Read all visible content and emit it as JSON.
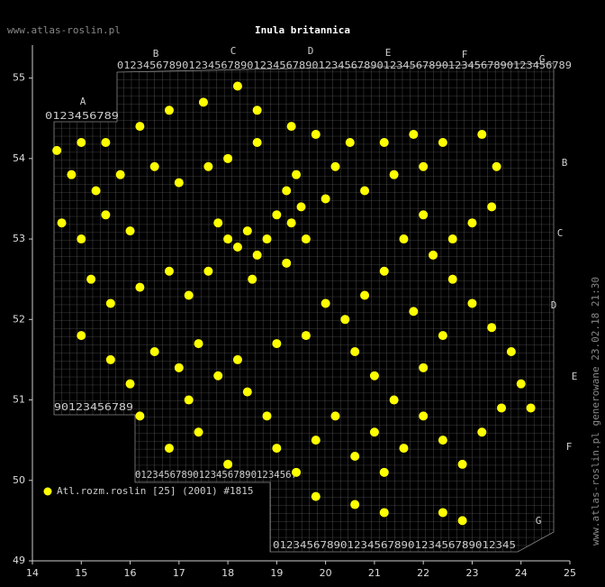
{
  "chart_data": {
    "type": "scatter",
    "title": "Inula britannica",
    "watermark": "www.atlas-roslin.pl",
    "side_text": "www.atlas-roslin.pl generowane 23.02.18 21:30",
    "xlim": [
      14,
      25
    ],
    "ylim": [
      49,
      55.41
    ],
    "xticks": [
      14,
      15,
      16,
      17,
      18,
      19,
      20,
      21,
      22,
      23,
      24,
      25
    ],
    "yticks": [
      49,
      50,
      51,
      52,
      53,
      54,
      55
    ],
    "grid_letters_top": [
      "A",
      "B",
      "C",
      "D",
      "E",
      "F",
      "G"
    ],
    "grid_letters_right": [
      "B",
      "C",
      "D",
      "E",
      "F",
      "G"
    ],
    "grid_digit_rows": [
      "0123456789012345678901234567890123456789012345678901234567890123456789",
      "0123456789",
      "90123456789",
      "0123456789012345678901234567",
      "012345678901234567890123456789012345"
    ],
    "series": [
      {
        "name": "Atl.rozm.roslin [25] (2001) #1815",
        "color": "#ffff00",
        "x": [
          14.5,
          15.0,
          15.5,
          16.2,
          16.8,
          17.5,
          18.2,
          18.6,
          19.3,
          19.8,
          20.5,
          21.2,
          21.8,
          22.4,
          23.2,
          23.5,
          14.8,
          15.3,
          15.8,
          16.5,
          17.0,
          17.6,
          14.6,
          15.0,
          15.5,
          16.0,
          17.8,
          18.0,
          18.2,
          18.4,
          18.6,
          18.8,
          19.0,
          19.2,
          19.4,
          19.3,
          19.5,
          19.6,
          19.2,
          18.5,
          17.6,
          17.2,
          16.8,
          16.2,
          15.6,
          15.2,
          15.0,
          15.6,
          16.0,
          16.5,
          17.0,
          17.2,
          17.4,
          17.8,
          18.2,
          18.4,
          18.8,
          19.0,
          19.4,
          19.8,
          20.2,
          20.6,
          21.0,
          21.2,
          21.6,
          22.0,
          22.4,
          22.8,
          23.2,
          23.6,
          24.0,
          23.8,
          23.4,
          23.0,
          22.6,
          22.2,
          22.6,
          23.0,
          23.4,
          22.0,
          21.6,
          21.2,
          20.8,
          20.4,
          20.0,
          19.6,
          19.0,
          20.6,
          21.0,
          21.4,
          22.0,
          22.4,
          21.8,
          20.8,
          21.4,
          22.0,
          20.2,
          20.0,
          18.0,
          18.6,
          16.2,
          16.8,
          17.4,
          18.0,
          19.8,
          20.6,
          21.2,
          22.4,
          22.8,
          24.2
        ],
        "y": [
          54.1,
          54.2,
          54.2,
          54.4,
          54.6,
          54.7,
          54.9,
          54.6,
          54.4,
          54.3,
          54.2,
          54.2,
          54.3,
          54.2,
          54.3,
          53.9,
          53.8,
          53.6,
          53.8,
          53.9,
          53.7,
          53.9,
          53.2,
          53.0,
          53.3,
          53.1,
          53.2,
          53.0,
          52.9,
          53.1,
          52.8,
          53.0,
          53.3,
          53.6,
          53.8,
          53.2,
          53.4,
          53.0,
          52.7,
          52.5,
          52.6,
          52.3,
          52.6,
          52.4,
          52.2,
          52.5,
          51.8,
          51.5,
          51.2,
          51.6,
          51.4,
          51.0,
          51.7,
          51.3,
          51.5,
          51.1,
          50.8,
          50.4,
          50.1,
          50.5,
          50.8,
          50.3,
          50.6,
          50.1,
          50.4,
          50.8,
          50.5,
          50.2,
          50.6,
          50.9,
          51.2,
          51.6,
          51.9,
          52.2,
          52.5,
          52.8,
          53.0,
          53.2,
          53.4,
          53.3,
          53.0,
          52.6,
          52.3,
          52.0,
          52.2,
          51.8,
          51.7,
          51.6,
          51.3,
          51.0,
          51.4,
          51.8,
          52.1,
          53.6,
          53.8,
          53.9,
          53.9,
          53.5,
          54.0,
          54.2,
          50.8,
          50.4,
          50.6,
          50.2,
          49.8,
          49.7,
          49.6,
          49.6,
          49.5,
          50.9
        ]
      }
    ]
  }
}
